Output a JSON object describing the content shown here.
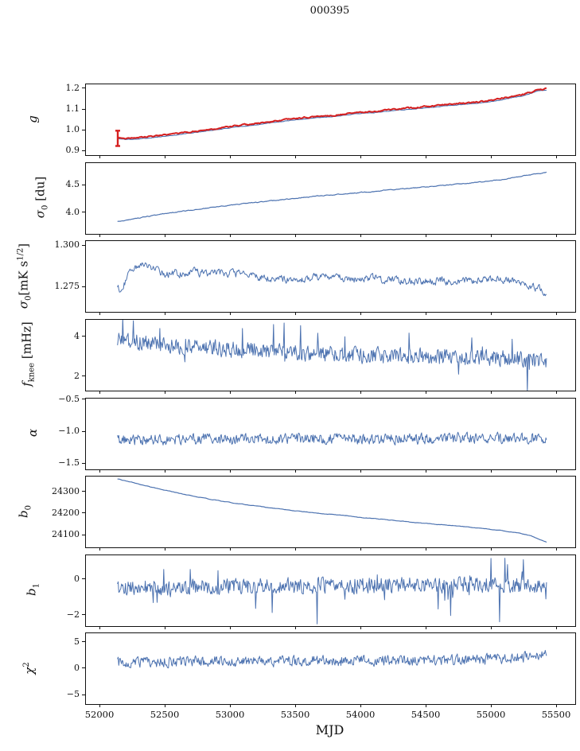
{
  "title": "000395",
  "colors": {
    "line_blue": "#4c72b0",
    "line_red": "#d62020",
    "axis": "#111111",
    "background": "#ffffff"
  },
  "chart_data": {
    "type": "line",
    "title": "000395",
    "xlabel": "MJD",
    "legend": "none",
    "grid": false,
    "xlim": [
      51890,
      55640
    ],
    "xticks": [
      52000,
      52500,
      53000,
      53500,
      54000,
      54500,
      55000,
      55500
    ],
    "xtick_labels": [
      "52000",
      "52500",
      "53000",
      "53500",
      "54000",
      "54500",
      "55000",
      "55500"
    ],
    "panels": [
      {
        "name": "g",
        "ylabel_html": "<i>g</i>",
        "ylabel_x": 41,
        "ylim": [
          0.881,
          1.223
        ],
        "yticks": [
          {
            "v": 0.9,
            "label": "0.9"
          },
          {
            "v": 1.0,
            "label": "1.0"
          },
          {
            "v": 1.1,
            "label": "1.1"
          },
          {
            "v": 1.2,
            "label": "1.2"
          }
        ],
        "series": [
          {
            "name": "gain-model",
            "color": "#4c72b0",
            "width": 1.1,
            "noise": 0.0012,
            "corr": 0.6,
            "points": 520,
            "seed": 101,
            "spiky": false,
            "trend": [
              [
                52132,
                0.96
              ],
              [
                52200,
                0.957
              ],
              [
                52300,
                0.96
              ],
              [
                52500,
                0.972
              ],
              [
                52700,
                0.988
              ],
              [
                53000,
                1.013
              ],
              [
                53200,
                1.028
              ],
              [
                53400,
                1.044
              ],
              [
                53500,
                1.052
              ],
              [
                53700,
                1.064
              ],
              [
                53800,
                1.068
              ],
              [
                54000,
                1.083
              ],
              [
                54100,
                1.086
              ],
              [
                54200,
                1.094
              ],
              [
                54400,
                1.104
              ],
              [
                54500,
                1.11
              ],
              [
                54700,
                1.122
              ],
              [
                54900,
                1.132
              ],
              [
                55000,
                1.14
              ],
              [
                55100,
                1.152
              ],
              [
                55200,
                1.163
              ],
              [
                55250,
                1.17
              ],
              [
                55300,
                1.179
              ],
              [
                55350,
                1.191
              ],
              [
                55420,
                1.196
              ]
            ]
          },
          {
            "name": "gain-measured",
            "color": "#d62020",
            "width": 2.0,
            "noise": 0.0028,
            "corr": 0.6,
            "points": 520,
            "seed": 202,
            "spiky": false,
            "offset": 0.006,
            "errorbar": {
              "x": 52134,
              "y": 0.962,
              "yerr": 0.037
            },
            "trend": [
              [
                52132,
                0.96
              ],
              [
                52200,
                0.957
              ],
              [
                52300,
                0.96
              ],
              [
                52500,
                0.972
              ],
              [
                52700,
                0.988
              ],
              [
                53000,
                1.013
              ],
              [
                53200,
                1.028
              ],
              [
                53400,
                1.044
              ],
              [
                53500,
                1.052
              ],
              [
                53700,
                1.064
              ],
              [
                53800,
                1.068
              ],
              [
                54000,
                1.083
              ],
              [
                54100,
                1.086
              ],
              [
                54200,
                1.094
              ],
              [
                54400,
                1.104
              ],
              [
                54500,
                1.11
              ],
              [
                54700,
                1.122
              ],
              [
                54900,
                1.132
              ],
              [
                55000,
                1.14
              ],
              [
                55100,
                1.152
              ],
              [
                55200,
                1.163
              ],
              [
                55250,
                1.17
              ],
              [
                55300,
                1.179
              ],
              [
                55350,
                1.191
              ],
              [
                55420,
                1.196
              ]
            ]
          }
        ]
      },
      {
        "name": "sigma0-du",
        "ylabel_html": "<i>σ</i><sub>0</sub> [du]",
        "ylabel_x": 52,
        "ylim": [
          3.63,
          4.91
        ],
        "yticks": [
          {
            "v": 4.0,
            "label": "4.0"
          },
          {
            "v": 4.5,
            "label": "4.5"
          }
        ],
        "series": [
          {
            "name": "sigma0-du",
            "color": "#4c72b0",
            "width": 1.2,
            "noise": 0.006,
            "corr": 0.6,
            "points": 560,
            "seed": 303,
            "spiky": false,
            "trend": [
              [
                52132,
                3.85
              ],
              [
                52250,
                3.9
              ],
              [
                52400,
                3.96
              ],
              [
                52600,
                4.03
              ],
              [
                52800,
                4.09
              ],
              [
                53000,
                4.15
              ],
              [
                53200,
                4.2
              ],
              [
                53400,
                4.25
              ],
              [
                53600,
                4.3
              ],
              [
                53800,
                4.34
              ],
              [
                54000,
                4.38
              ],
              [
                54200,
                4.42
              ],
              [
                54400,
                4.46
              ],
              [
                54600,
                4.5
              ],
              [
                54800,
                4.54
              ],
              [
                55000,
                4.59
              ],
              [
                55100,
                4.62
              ],
              [
                55200,
                4.66
              ],
              [
                55300,
                4.7
              ],
              [
                55420,
                4.74
              ]
            ]
          }
        ]
      },
      {
        "name": "sigma0-mks",
        "ylabel_html": "<i>σ</i><sub>0</sub>[mK s<sup>1/2</sup>]",
        "ylabel_x": 31,
        "ylim": [
          1.26,
          1.3028
        ],
        "yticks": [
          {
            "v": 1.275,
            "label": "1.275"
          },
          {
            "v": 1.3,
            "label": "1.300"
          }
        ],
        "series": [
          {
            "name": "sigma0-mks",
            "color": "#4c72b0",
            "width": 1.0,
            "noise": 0.0021,
            "corr": 0.55,
            "points": 650,
            "seed": 404,
            "spiky": false,
            "trend": [
              [
                52132,
                1.2755
              ],
              [
                52160,
                1.272
              ],
              [
                52220,
                1.284
              ],
              [
                52300,
                1.288
              ],
              [
                52400,
                1.2865
              ],
              [
                52500,
                1.283
              ],
              [
                52700,
                1.284
              ],
              [
                52900,
                1.2835
              ],
              [
                53100,
                1.2825
              ],
              [
                53300,
                1.28
              ],
              [
                53500,
                1.2795
              ],
              [
                53700,
                1.281
              ],
              [
                53900,
                1.28
              ],
              [
                54100,
                1.2805
              ],
              [
                54300,
                1.278
              ],
              [
                54500,
                1.279
              ],
              [
                54700,
                1.2785
              ],
              [
                54900,
                1.279
              ],
              [
                55100,
                1.2795
              ],
              [
                55250,
                1.278
              ],
              [
                55350,
                1.2735
              ],
              [
                55420,
                1.2725
              ]
            ]
          }
        ]
      },
      {
        "name": "fknee",
        "ylabel_html": "<i>f</i><sub>knee</sub> [mHz]",
        "ylabel_x": 35,
        "ylim": [
          1.32,
          4.88
        ],
        "yticks": [
          {
            "v": 2,
            "label": "2"
          },
          {
            "v": 4,
            "label": "4"
          }
        ],
        "series": [
          {
            "name": "fknee",
            "color": "#4c72b0",
            "width": 1.0,
            "noise": 0.42,
            "corr": 0.25,
            "points": 650,
            "seed": 505,
            "spiky": true,
            "trend": [
              [
                52132,
                3.95
              ],
              [
                52300,
                3.75
              ],
              [
                52500,
                3.6
              ],
              [
                52800,
                3.5
              ],
              [
                53000,
                3.4
              ],
              [
                53300,
                3.3
              ],
              [
                53600,
                3.2
              ],
              [
                54000,
                3.1
              ],
              [
                54400,
                3.05
              ],
              [
                54800,
                3.0
              ],
              [
                55100,
                2.95
              ],
              [
                55300,
                2.85
              ],
              [
                55420,
                2.75
              ]
            ]
          }
        ]
      },
      {
        "name": "alpha",
        "ylabel_html": "<i>α</i>",
        "ylabel_x": 41,
        "ylim": [
          -1.58,
          -0.47
        ],
        "yticks": [
          {
            "v": -0.5,
            "label": "−0.5"
          },
          {
            "v": -1.0,
            "label": "−1.0"
          },
          {
            "v": -1.5,
            "label": "−1.5"
          }
        ],
        "series": [
          {
            "name": "alpha",
            "color": "#4c72b0",
            "width": 1.0,
            "noise": 0.085,
            "corr": 0.3,
            "points": 650,
            "seed": 606,
            "spiky": false,
            "trend": [
              [
                52132,
                -1.12
              ],
              [
                52500,
                -1.11
              ],
              [
                53000,
                -1.105
              ],
              [
                53500,
                -1.1
              ],
              [
                54000,
                -1.1
              ],
              [
                54500,
                -1.095
              ],
              [
                55000,
                -1.09
              ],
              [
                55420,
                -1.085
              ]
            ]
          }
        ]
      },
      {
        "name": "b0",
        "ylabel_html": "<i>b</i><sub>0</sub>",
        "ylabel_x": 31,
        "ylim": [
          24044,
          24373
        ],
        "yticks": [
          {
            "v": 24300,
            "label": "24300"
          },
          {
            "v": 24200,
            "label": "24200"
          },
          {
            "v": 24100,
            "label": "24100"
          }
        ],
        "series": [
          {
            "name": "b0",
            "color": "#4c72b0",
            "width": 1.2,
            "noise": 1.0,
            "corr": 0.7,
            "points": 420,
            "seed": 707,
            "spiky": false,
            "trend": [
              [
                52132,
                24362
              ],
              [
                52250,
                24345
              ],
              [
                52400,
                24322
              ],
              [
                52600,
                24296
              ],
              [
                52800,
                24272
              ],
              [
                53000,
                24252
              ],
              [
                53200,
                24236
              ],
              [
                53400,
                24220
              ],
              [
                53600,
                24207
              ],
              [
                53800,
                24196
              ],
              [
                54000,
                24183
              ],
              [
                54200,
                24172
              ],
              [
                54400,
                24160
              ],
              [
                54600,
                24150
              ],
              [
                54800,
                24140
              ],
              [
                55000,
                24127
              ],
              [
                55200,
                24112
              ],
              [
                55300,
                24098
              ],
              [
                55420,
                24068
              ]
            ]
          }
        ]
      },
      {
        "name": "b1",
        "ylabel_html": "<i>b</i><sub>1</sub>",
        "ylabel_x": 41,
        "ylim": [
          -2.57,
          1.38
        ],
        "yticks": [
          {
            "v": 0,
            "label": "0"
          },
          {
            "v": -2,
            "label": "−2"
          }
        ],
        "series": [
          {
            "name": "b1",
            "color": "#4c72b0",
            "width": 1.0,
            "noise": 0.45,
            "corr": 0.2,
            "points": 650,
            "seed": 808,
            "spiky": true,
            "spikes": [
              [
                53660,
                -2.45
              ],
              [
                55060,
                -2.33
              ]
            ],
            "trend": [
              [
                52132,
                -0.4
              ],
              [
                52600,
                -0.42
              ],
              [
                53000,
                -0.35
              ],
              [
                53500,
                -0.3
              ],
              [
                54000,
                -0.3
              ],
              [
                54500,
                -0.28
              ],
              [
                55000,
                -0.25
              ],
              [
                55420,
                -0.3
              ]
            ]
          }
        ]
      },
      {
        "name": "chi2",
        "ylabel_html": "<i>χ</i><sup>2</sup>",
        "ylabel_x": 37,
        "ylim": [
          -6.7,
          6.7
        ],
        "yticks": [
          {
            "v": 5,
            "label": "5"
          },
          {
            "v": 0,
            "label": "0"
          },
          {
            "v": -5,
            "label": "−5"
          }
        ],
        "series": [
          {
            "name": "chi2",
            "color": "#4c72b0",
            "width": 1.0,
            "noise": 1.0,
            "corr": 0.3,
            "points": 650,
            "seed": 909,
            "spiky": false,
            "trend": [
              [
                52132,
                1.1
              ],
              [
                52600,
                1.3
              ],
              [
                53000,
                1.4
              ],
              [
                53500,
                1.4
              ],
              [
                54000,
                1.5
              ],
              [
                54500,
                1.6
              ],
              [
                55000,
                1.8
              ],
              [
                55250,
                2.2
              ],
              [
                55420,
                2.6
              ]
            ]
          }
        ]
      }
    ]
  }
}
